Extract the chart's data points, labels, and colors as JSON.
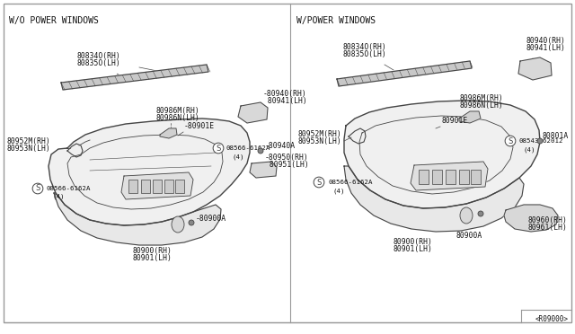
{
  "bg_color": "#ffffff",
  "border_color": "#999999",
  "line_color": "#444444",
  "text_color": "#111111",
  "left_header": "W/O POWER WINDOWS",
  "right_header": "W/POWER WINDOWS",
  "footer_ref": "<R09000>",
  "font_size_label": 5.8,
  "font_size_header": 7.0
}
